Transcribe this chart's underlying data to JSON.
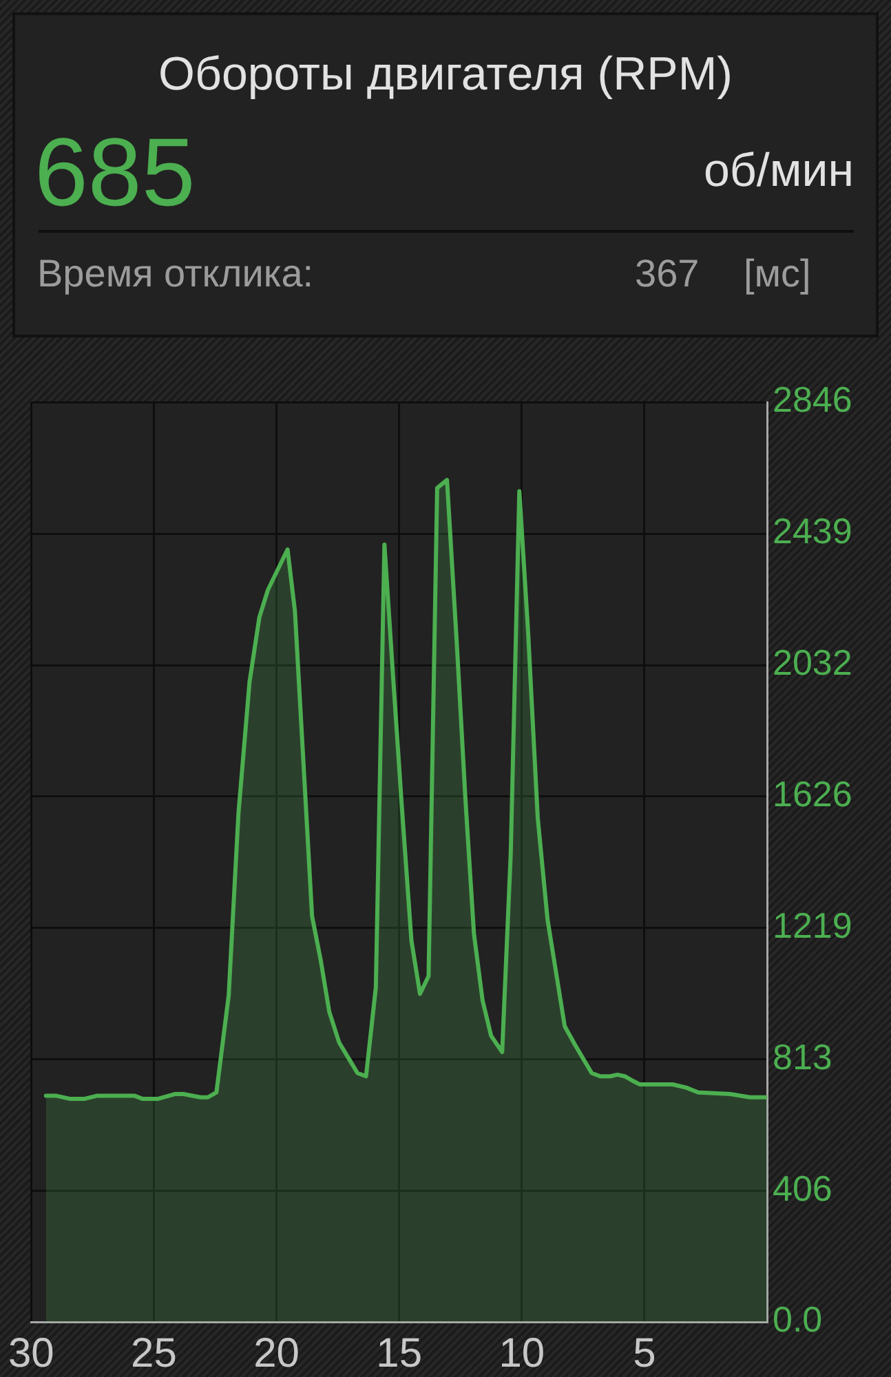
{
  "chart_data": {
    "type": "area",
    "title": "Обороты двигателя (RPM)",
    "annotations": [
      "685",
      "об/мин",
      "Время отклика:",
      "367",
      "[мс]"
    ],
    "x": [
      29.4,
      29.0,
      28.4,
      27.85,
      27.3,
      26.8,
      25.8,
      25.45,
      24.85,
      24.15,
      23.8,
      23.1,
      22.8,
      22.45,
      21.95,
      21.55,
      21.1,
      20.7,
      20.35,
      19.55,
      19.25,
      18.85,
      18.55,
      18.2,
      17.85,
      17.45,
      16.7,
      16.35,
      15.95,
      15.6,
      15.25,
      14.9,
      14.5,
      14.15,
      13.8,
      13.45,
      13.05,
      12.65,
      12.3,
      11.95,
      11.6,
      11.25,
      10.8,
      10.45,
      10.1,
      9.75,
      9.35,
      8.95,
      8.6,
      8.25,
      7.85,
      7.5,
      7.15,
      6.8,
      6.4,
      6.1,
      5.8,
      5.45,
      5.2,
      3.85,
      3.3,
      2.8,
      1.5,
      0.7,
      0
    ],
    "values": [
      700,
      700,
      690,
      690,
      700,
      700,
      700,
      690,
      690,
      705,
      705,
      695,
      695,
      710,
      1010,
      1575,
      1980,
      2180,
      2265,
      2390,
      2200,
      1660,
      1255,
      1120,
      960,
      865,
      770,
      760,
      1035,
      2405,
      2000,
      1605,
      1180,
      1015,
      1070,
      2580,
      2605,
      2100,
      1620,
      1200,
      995,
      885,
      835,
      1450,
      2570,
      2145,
      1560,
      1245,
      1080,
      915,
      860,
      815,
      770,
      760,
      760,
      765,
      760,
      745,
      735,
      735,
      725,
      710,
      705,
      695,
      695
    ],
    "color": "#4caf50",
    "xlim": [
      30,
      0
    ],
    "xticks": [
      30,
      25,
      20,
      15,
      10,
      5
    ],
    "ylim": [
      0,
      2846
    ],
    "yticks": [
      {
        "value": 0,
        "label": "0.0"
      },
      406,
      813,
      1219,
      1626,
      2032,
      2439,
      2846
    ],
    "grid": true,
    "marker": "none"
  }
}
